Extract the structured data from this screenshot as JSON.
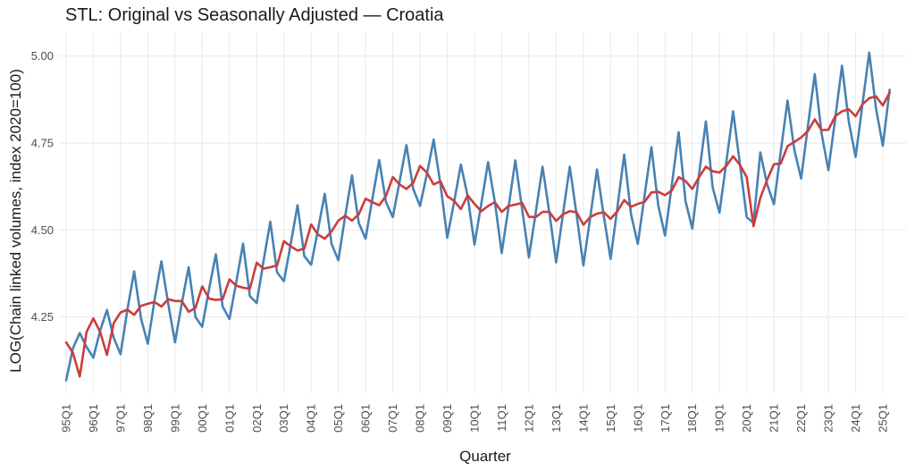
{
  "chart_data": {
    "type": "line",
    "title": "STL: Original vs Seasonally Adjusted — Croatia",
    "xlabel": "Quarter",
    "ylabel": "LOG(Chain linked volumes, index 2020=100)",
    "ylim": [
      4.063,
      5.035
    ],
    "yticks": [
      4.25,
      4.5,
      4.75,
      5.0
    ],
    "ytick_labels": [
      "4.25",
      "4.50",
      "4.75",
      "5.00"
    ],
    "grid": true,
    "legend": "none",
    "start_quarter": "1995Q1",
    "xtick_labels": [
      "95Q1",
      "96Q1",
      "97Q1",
      "98Q1",
      "99Q1",
      "00Q1",
      "01Q1",
      "02Q1",
      "03Q1",
      "04Q1",
      "05Q1",
      "06Q1",
      "07Q1",
      "08Q1",
      "09Q1",
      "10Q1",
      "11Q1",
      "12Q1",
      "13Q1",
      "14Q1",
      "15Q1",
      "16Q1",
      "17Q1",
      "18Q1",
      "19Q1",
      "20Q1",
      "21Q1",
      "22Q1",
      "23Q1",
      "24Q1",
      "25Q1"
    ],
    "series": [
      {
        "name": "Original",
        "color": "#4682b4",
        "values": [
          4.068,
          4.16,
          4.204,
          4.164,
          4.133,
          4.211,
          4.27,
          4.19,
          4.143,
          4.271,
          4.381,
          4.246,
          4.173,
          4.3,
          4.41,
          4.288,
          4.177,
          4.29,
          4.393,
          4.25,
          4.222,
          4.33,
          4.43,
          4.28,
          4.244,
          4.35,
          4.461,
          4.31,
          4.29,
          4.41,
          4.524,
          4.378,
          4.353,
          4.46,
          4.571,
          4.425,
          4.4,
          4.5,
          4.604,
          4.46,
          4.413,
          4.54,
          4.657,
          4.52,
          4.475,
          4.59,
          4.701,
          4.58,
          4.537,
          4.64,
          4.744,
          4.618,
          4.569,
          4.66,
          4.76,
          4.631,
          4.478,
          4.58,
          4.688,
          4.597,
          4.458,
          4.575,
          4.695,
          4.58,
          4.434,
          4.565,
          4.7,
          4.56,
          4.421,
          4.55,
          4.682,
          4.55,
          4.407,
          4.545,
          4.682,
          4.545,
          4.398,
          4.535,
          4.674,
          4.54,
          4.417,
          4.565,
          4.717,
          4.545,
          4.46,
          4.6,
          4.738,
          4.571,
          4.484,
          4.63,
          4.781,
          4.584,
          4.504,
          4.66,
          4.812,
          4.622,
          4.55,
          4.695,
          4.841,
          4.69,
          4.537,
          4.52,
          4.723,
          4.631,
          4.574,
          4.725,
          4.872,
          4.73,
          4.648,
          4.8,
          4.948,
          4.777,
          4.672,
          4.82,
          4.972,
          4.811,
          4.71,
          4.86,
          5.01,
          4.849,
          4.742,
          4.903
        ]
      },
      {
        "name": "Seasonally adjusted",
        "color": "#cd3c3c",
        "values": [
          4.177,
          4.147,
          4.079,
          4.207,
          4.246,
          4.207,
          4.141,
          4.233,
          4.263,
          4.271,
          4.256,
          4.282,
          4.288,
          4.293,
          4.28,
          4.301,
          4.296,
          4.296,
          4.265,
          4.276,
          4.338,
          4.303,
          4.299,
          4.301,
          4.358,
          4.34,
          4.334,
          4.331,
          4.406,
          4.389,
          4.393,
          4.398,
          4.468,
          4.453,
          4.441,
          4.447,
          4.516,
          4.487,
          4.475,
          4.496,
          4.527,
          4.541,
          4.527,
          4.545,
          4.59,
          4.58,
          4.571,
          4.598,
          4.652,
          4.631,
          4.618,
          4.635,
          4.684,
          4.665,
          4.631,
          4.64,
          4.597,
          4.584,
          4.56,
          4.6,
          4.575,
          4.554,
          4.569,
          4.58,
          4.552,
          4.569,
          4.573,
          4.578,
          4.538,
          4.537,
          4.552,
          4.552,
          4.526,
          4.545,
          4.554,
          4.551,
          4.515,
          4.537,
          4.547,
          4.551,
          4.532,
          4.554,
          4.586,
          4.567,
          4.575,
          4.581,
          4.608,
          4.61,
          4.6,
          4.614,
          4.652,
          4.641,
          4.618,
          4.652,
          4.682,
          4.669,
          4.665,
          4.684,
          4.712,
          4.687,
          4.652,
          4.511,
          4.592,
          4.644,
          4.689,
          4.691,
          4.741,
          4.753,
          4.766,
          4.785,
          4.818,
          4.787,
          4.788,
          4.827,
          4.841,
          4.847,
          4.827,
          4.861,
          4.879,
          4.884,
          4.858,
          4.895
        ]
      }
    ]
  }
}
